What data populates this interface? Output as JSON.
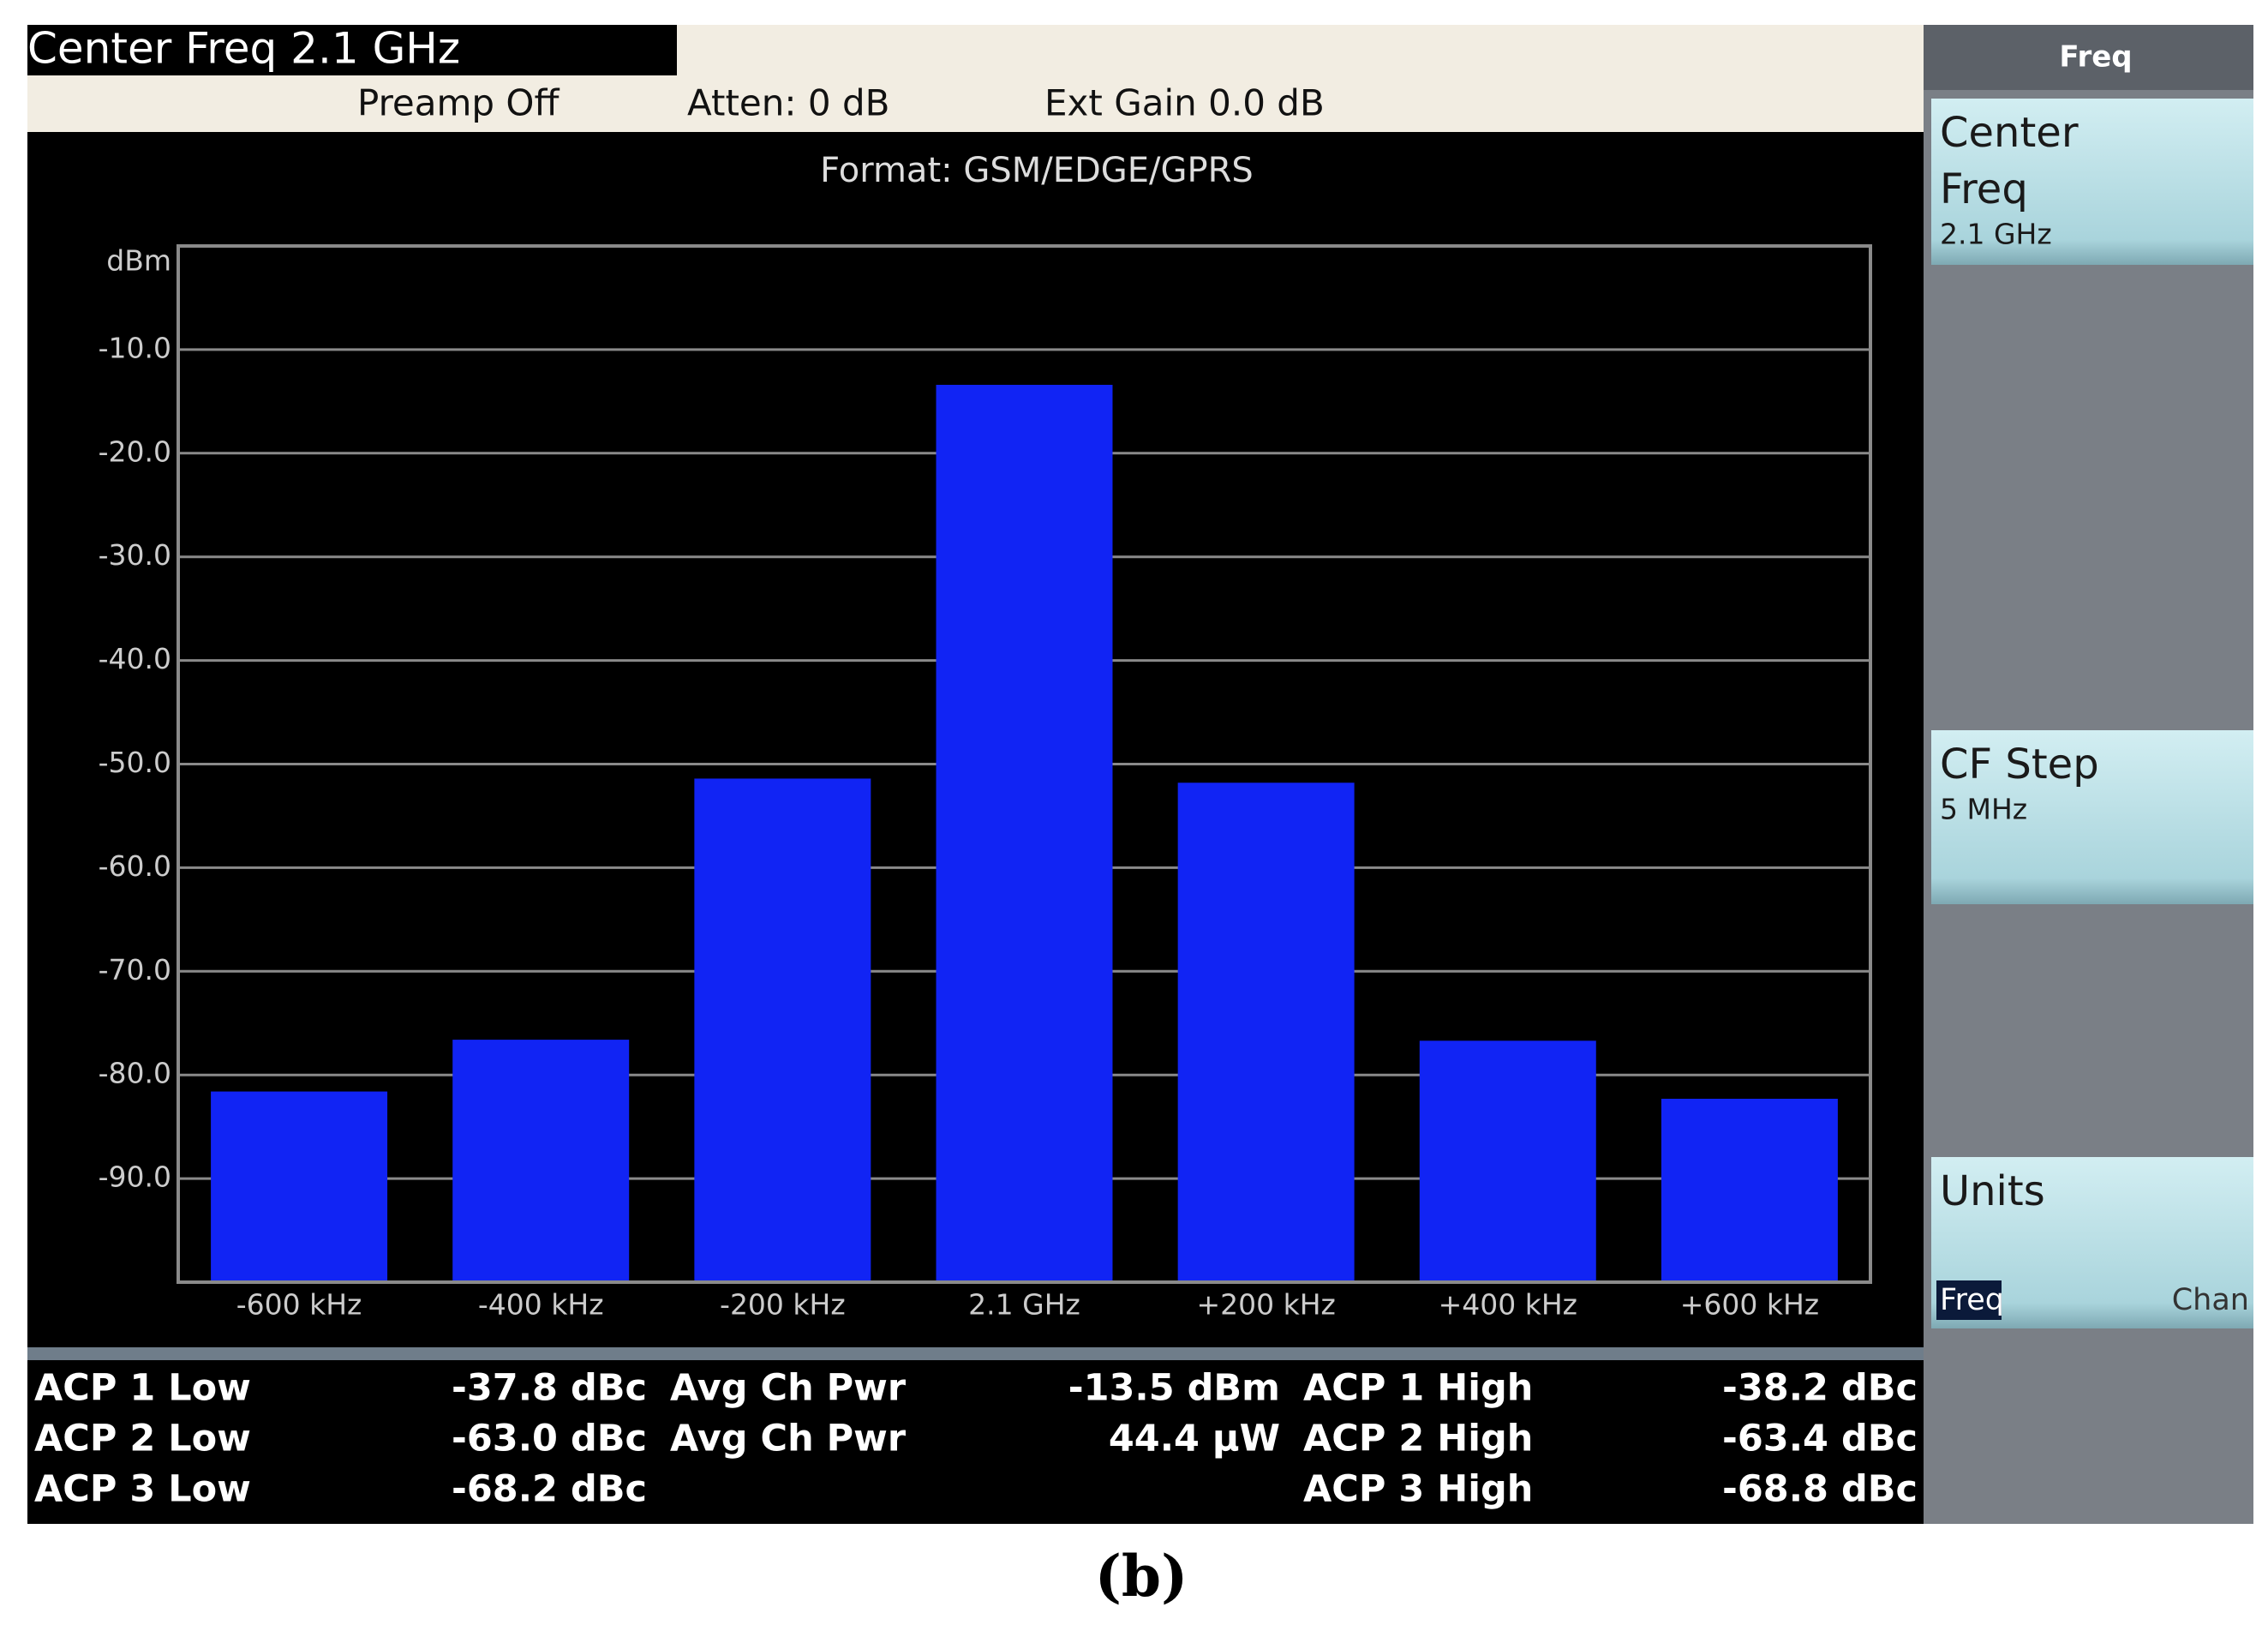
{
  "header": {
    "title": "Center Freq 2.1 GHz",
    "preamp": "Preamp Off",
    "atten": "Atten: 0 dB",
    "ext_gain": "Ext Gain 0.0 dB"
  },
  "chart_data": {
    "type": "bar",
    "title": "Format: GSM/EDGE/GPRS",
    "y_unit": "dBm",
    "categories": [
      "-600 kHz",
      "-400 kHz",
      "-200 kHz",
      "2.1 GHz",
      "+200 kHz",
      "+400 kHz",
      "+600 kHz"
    ],
    "values": [
      -81.6,
      -76.6,
      -51.4,
      -13.4,
      -51.8,
      -76.7,
      -82.3
    ],
    "color": "#1124f4",
    "ylim": [
      -100,
      0
    ],
    "yticks": [
      {
        "value": -10,
        "label": "-10.0"
      },
      {
        "value": -20,
        "label": "-20.0"
      },
      {
        "value": -30,
        "label": "-30.0"
      },
      {
        "value": -40,
        "label": "-40.0"
      },
      {
        "value": -50,
        "label": "-50.0"
      },
      {
        "value": -60,
        "label": "-60.0"
      },
      {
        "value": -70,
        "label": "-70.0"
      },
      {
        "value": -80,
        "label": "-80.0"
      },
      {
        "value": -90,
        "label": "-90.0"
      }
    ],
    "grid": true
  },
  "measurements": {
    "low": [
      {
        "label": "ACP 1 Low",
        "value": "-37.8 dBc"
      },
      {
        "label": "ACP 2 Low",
        "value": "-63.0 dBc"
      },
      {
        "label": "ACP 3 Low",
        "value": "-68.2 dBc"
      }
    ],
    "avg": [
      {
        "label": "Avg Ch Pwr",
        "value": "-13.5 dBm"
      },
      {
        "label": "Avg Ch Pwr",
        "value": "44.4 µW"
      }
    ],
    "high": [
      {
        "label": "ACP 1 High",
        "value": "-38.2 dBc"
      },
      {
        "label": "ACP 2 High",
        "value": "-63.4 dBc"
      },
      {
        "label": "ACP 3 High",
        "value": "-68.8 dBc"
      }
    ]
  },
  "softkeys": {
    "title": "Freq",
    "keys": [
      {
        "lines": [
          "Center",
          "Freq"
        ],
        "value": "2.1 GHz"
      },
      {
        "lines": [
          "CF Step"
        ],
        "value": "5 MHz"
      },
      {
        "lines": [
          "Units"
        ],
        "options": [
          "Freq",
          "Chan"
        ]
      }
    ]
  },
  "caption": "(b)"
}
